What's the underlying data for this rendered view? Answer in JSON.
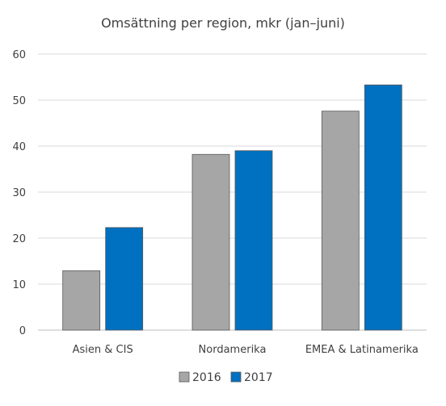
{
  "chart_data": {
    "type": "bar",
    "title": "Omsättning per region, mkr (jan–juni)",
    "xlabel": "",
    "ylabel": "",
    "categories": [
      "Asien & CIS",
      "Nordamerika",
      "EMEA & Latinamerika"
    ],
    "series": [
      {
        "name": "2016",
        "values": [
          12.9,
          38.2,
          47.6
        ],
        "color": "#a6a6a6"
      },
      {
        "name": "2017",
        "values": [
          22.3,
          39.0,
          53.3
        ],
        "color": "#0070c0"
      }
    ],
    "ylim": [
      0,
      60
    ],
    "yticks": [
      "0",
      "10",
      "20",
      "30",
      "40",
      "50",
      "60"
    ],
    "grid": true,
    "legend_position": "bottom"
  }
}
